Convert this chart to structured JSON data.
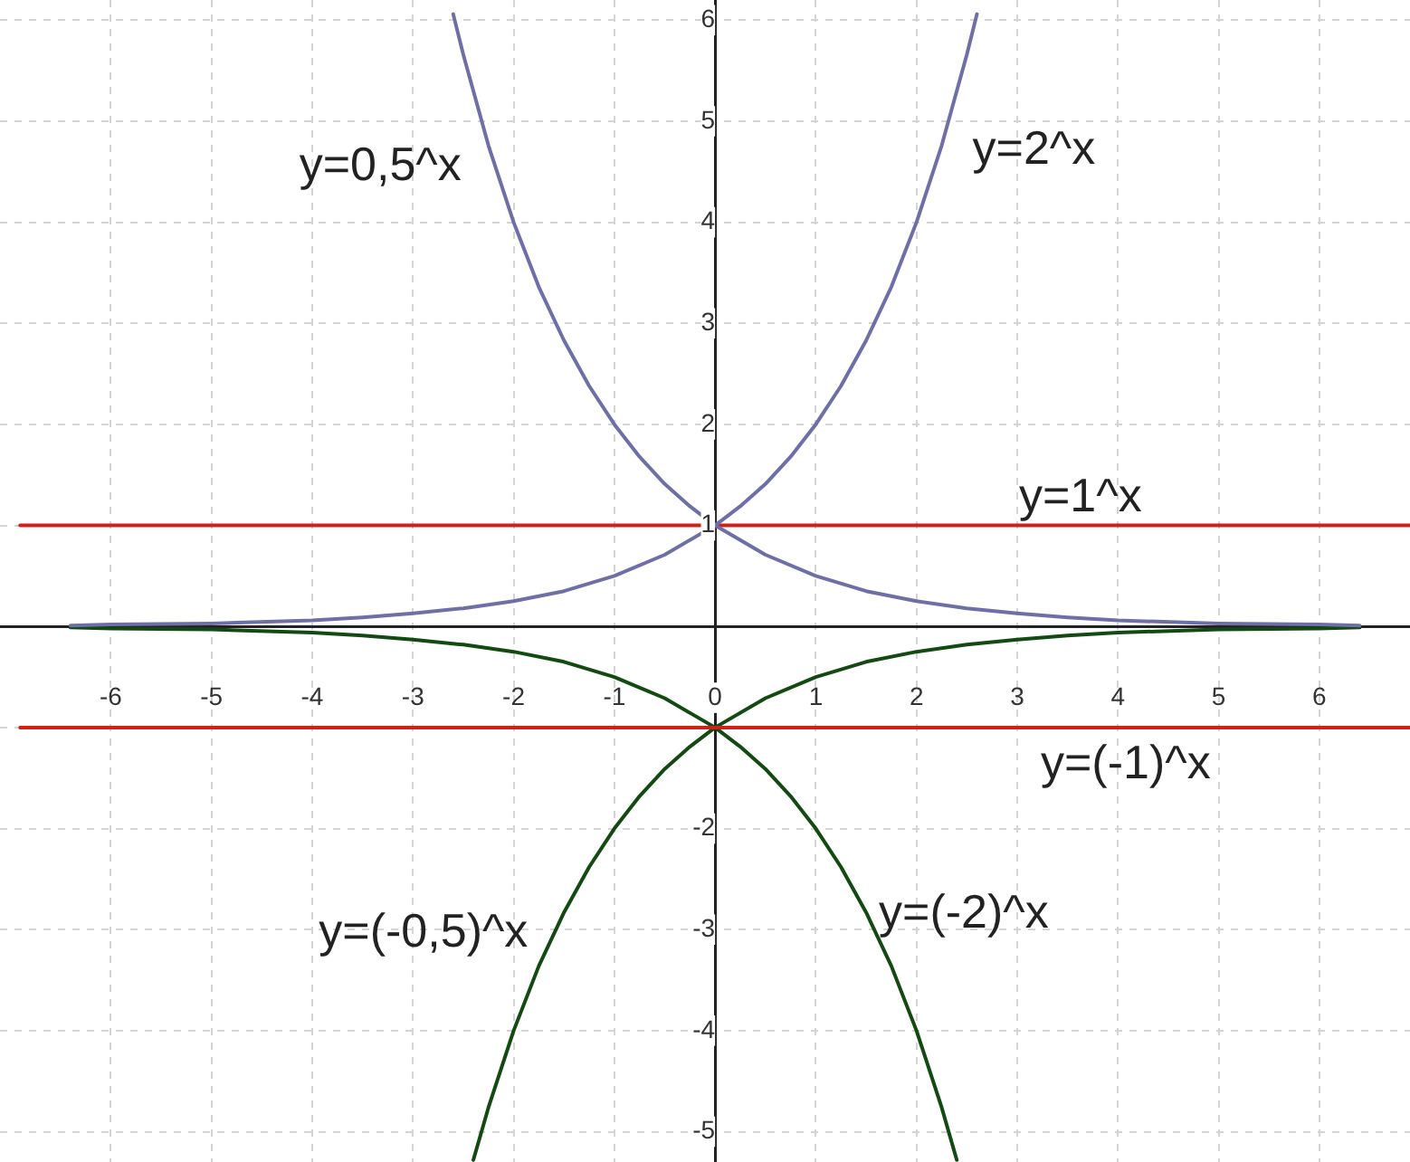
{
  "chart_data": {
    "type": "line",
    "xlim": [
      -7.1,
      6.9
    ],
    "ylim": [
      -5.3,
      6.2
    ],
    "xticks": [
      -6,
      -5,
      -4,
      -3,
      -2,
      -1,
      0,
      1,
      2,
      3,
      4,
      5,
      6
    ],
    "yticks": [
      -5,
      -4,
      -3,
      -2,
      {
        "value": -1,
        "label": null
      },
      {
        "value": 0,
        "label": null
      },
      1,
      2,
      3,
      4,
      5,
      6
    ],
    "grid": true,
    "marker": "none",
    "series": [
      {
        "name": "y=0,5^x",
        "color": "#6f6fa8",
        "x": [
          -2.6,
          -2.5,
          -2.25,
          -2,
          -1.75,
          -1.5,
          -1.25,
          -1,
          -0.75,
          -0.5,
          -0.25,
          0,
          0.5,
          1,
          1.5,
          2,
          2.5,
          3,
          3.5,
          4,
          5,
          6,
          6.4
        ],
        "values": [
          6.06,
          5.66,
          4.76,
          4,
          3.36,
          2.83,
          2.38,
          2,
          1.68,
          1.41,
          1.19,
          1,
          0.71,
          0.5,
          0.35,
          0.25,
          0.18,
          0.13,
          0.09,
          0.06,
          0.03,
          0.02,
          0.01
        ]
      },
      {
        "name": "y=2^x",
        "color": "#6f6fa8",
        "x": [
          -6.4,
          -6,
          -5,
          -4,
          -3.5,
          -3,
          -2.5,
          -2,
          -1.5,
          -1,
          -0.5,
          0,
          0.25,
          0.5,
          0.75,
          1,
          1.25,
          1.5,
          1.75,
          2,
          2.25,
          2.5,
          2.6
        ],
        "values": [
          0.01,
          0.02,
          0.03,
          0.06,
          0.09,
          0.13,
          0.18,
          0.25,
          0.35,
          0.5,
          0.71,
          1,
          1.19,
          1.41,
          1.68,
          2,
          2.38,
          2.83,
          3.36,
          4,
          4.76,
          5.66,
          6.06
        ]
      },
      {
        "name": "y=1^x",
        "color": "#d0201a",
        "x": [
          -6.9,
          6.9
        ],
        "values": [
          1,
          1
        ]
      },
      {
        "name": "y=(-1)^x",
        "color": "#d0201a",
        "x": [
          -6.9,
          6.9
        ],
        "values": [
          -1,
          -1
        ]
      },
      {
        "name": "y=(-0,5)^x",
        "color": "#124a12",
        "x": [
          -2.4,
          -2.25,
          -2,
          -1.75,
          -1.5,
          -1.25,
          -1,
          -0.75,
          -0.5,
          -0.25,
          0,
          0.5,
          1,
          1.5,
          2,
          2.5,
          3,
          3.5,
          4,
          5,
          6,
          6.4
        ],
        "values": [
          -5.28,
          -4.76,
          -4,
          -3.36,
          -2.83,
          -2.38,
          -2,
          -1.68,
          -1.41,
          -1.19,
          -1,
          -0.71,
          -0.5,
          -0.35,
          -0.25,
          -0.18,
          -0.13,
          -0.09,
          -0.06,
          -0.03,
          -0.02,
          -0.01
        ]
      },
      {
        "name": "y=(-2)^x",
        "color": "#124a12",
        "x": [
          -6.4,
          -6,
          -5,
          -4,
          -3.5,
          -3,
          -2.5,
          -2,
          -1.5,
          -1,
          -0.5,
          0,
          0.25,
          0.5,
          0.75,
          1,
          1.25,
          1.5,
          1.75,
          2,
          2.25,
          2.4
        ],
        "values": [
          -0.01,
          -0.02,
          -0.03,
          -0.06,
          -0.09,
          -0.13,
          -0.18,
          -0.25,
          -0.35,
          -0.5,
          -0.71,
          -1,
          -1.19,
          -1.41,
          -1.68,
          -2,
          -2.38,
          -2.83,
          -3.36,
          -4,
          -4.76,
          -5.28
        ]
      }
    ]
  }
}
